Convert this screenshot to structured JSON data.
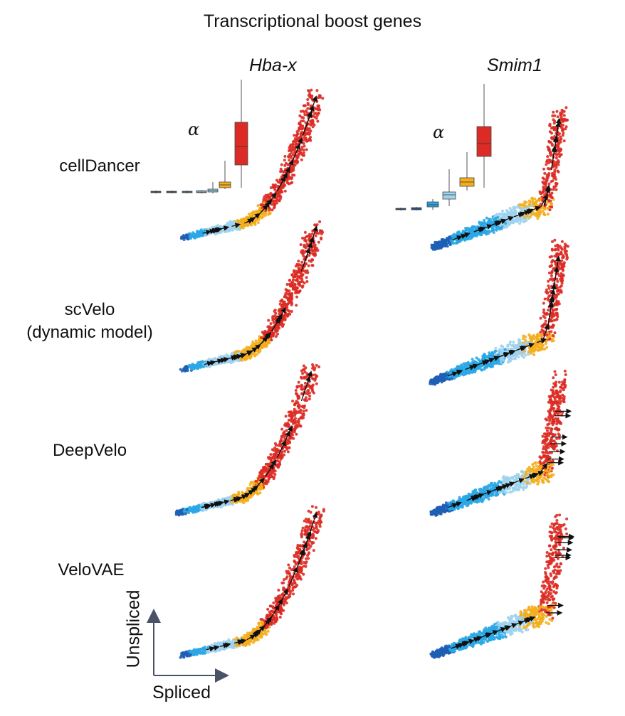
{
  "figure": {
    "title": "Transcriptional boost genes",
    "genes": [
      "Hba-x",
      "Smim1"
    ],
    "methods": [
      "cellDancer",
      "scVelo\n(dynamic model)",
      "DeepVelo",
      "VeloVAE"
    ],
    "alpha_label": "α",
    "axis": {
      "xlabel": "Spliced",
      "ylabel": "Unspliced"
    },
    "colors": {
      "stage1": "#1e5fb4",
      "stage2": "#2aa7e6",
      "stage3": "#9fd3ee",
      "stage4": "#f4ae1d",
      "stage5": "#dc2b24",
      "arrow": "#111111",
      "axis_arrow": "#4a5268"
    }
  },
  "chart_data": {
    "type": "scatter",
    "xlabel": "Spliced",
    "ylabel": "Unspliced",
    "alpha_boxplots": [
      {
        "gene": "Hba-x",
        "method": "cellDancer",
        "box_count": 7
      },
      {
        "gene": "Smim1",
        "method": "cellDancer",
        "box_count": 6
      }
    ]
  }
}
